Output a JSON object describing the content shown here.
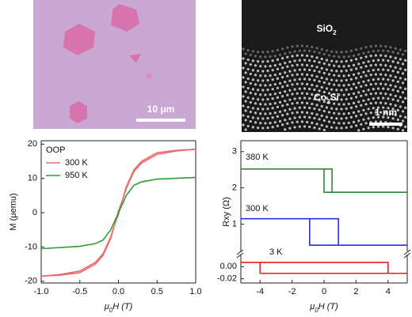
{
  "images": {
    "optical_scale": "10 μm",
    "tem_top_label": "SiO2",
    "tem_bottom_label": "Co2Si",
    "tem_scale": "1 nm"
  },
  "chart_data": [
    {
      "type": "line",
      "xlabel": "μ0H (T)",
      "ylabel": "M (μemu)",
      "legend_title": "OOP",
      "legend": "top-left",
      "xlim": [
        -1,
        1
      ],
      "ylim": [
        -20.5,
        21
      ],
      "xticks": [
        {
          "value": -1,
          "label": "-1.0"
        },
        -0.5,
        {
          "value": 0,
          "label": "0.0"
        },
        0.5,
        {
          "value": 1,
          "label": "1.0"
        }
      ],
      "yticks": [
        -20,
        -10,
        0,
        10,
        20
      ],
      "series": [
        {
          "name": "300 K",
          "color": "#ee6b6b",
          "x": [
            1,
            0.75,
            0.5,
            0.3,
            0.2,
            0.1,
            0.05,
            0,
            -0.05,
            -0.1,
            -0.2,
            -0.3,
            -0.5,
            -0.75,
            -1,
            -0.75,
            -0.5,
            -0.3,
            -0.2,
            -0.1,
            -0.05,
            0,
            0.05,
            0.1,
            0.2,
            0.3,
            0.5,
            0.75,
            1
          ],
          "values": [
            18.5,
            18,
            17,
            14.5,
            12,
            7,
            3.5,
            0.5,
            -3.5,
            -7.5,
            -12.5,
            -15,
            -17.5,
            -18.2,
            -18.5,
            -18,
            -17,
            -14.5,
            -12,
            -7,
            -3.5,
            -0.5,
            3.5,
            7.5,
            12.5,
            15,
            17.5,
            18.2,
            18.5
          ]
        },
        {
          "name": "950 K",
          "color": "#2e9e2e",
          "x": [
            -1,
            -0.5,
            -0.3,
            -0.2,
            -0.1,
            -0.05,
            0,
            0.05,
            0.1,
            0.2,
            0.3,
            0.5,
            1
          ],
          "values": [
            -10.5,
            -9.8,
            -9,
            -8,
            -5,
            -2.5,
            0,
            2.5,
            5,
            8,
            9,
            9.8,
            10.3
          ]
        }
      ]
    },
    {
      "type": "line",
      "ylabel": "Rxy (Ω)",
      "xlim": [
        -5.2,
        5.2
      ],
      "ylim": [
        0.25,
        3.3
      ],
      "yticks": [
        1,
        2,
        3
      ],
      "series": [
        {
          "name": "380 K",
          "color": "#2e8b2e",
          "x": [
            -5.2,
            0.5,
            0.5,
            5.2,
            5.2,
            0,
            0,
            -5.2
          ],
          "values": [
            2.52,
            2.52,
            1.88,
            1.88,
            1.88,
            1.88,
            2.52,
            2.52
          ]
        },
        {
          "name": "300 K",
          "color": "#2233dd",
          "x": [
            -5.2,
            0.9,
            0.9,
            5.2,
            5.2,
            -0.9,
            -0.9,
            -5.2
          ],
          "values": [
            1.15,
            1.15,
            0.42,
            0.42,
            0.42,
            0.42,
            1.15,
            1.15
          ]
        }
      ]
    },
    {
      "type": "line",
      "xlabel": "μ0H (T)",
      "xlim": [
        -5.2,
        5.2
      ],
      "ylim": [
        -0.027,
        0.02
      ],
      "xticks": [
        -4,
        -2,
        0,
        2,
        4
      ],
      "yticks": [
        {
          "value": 0,
          "label": "0.00"
        },
        {
          "value": -0.02,
          "label": "-0.02"
        }
      ],
      "series": [
        {
          "name": "3 K",
          "color": "#dd2222",
          "x": [
            -5.2,
            4,
            4,
            5.2,
            5.2,
            -4,
            -4,
            -5.2
          ],
          "values": [
            0.007,
            0.007,
            -0.011,
            -0.011,
            -0.011,
            -0.011,
            0.007,
            0.007
          ]
        }
      ]
    }
  ]
}
